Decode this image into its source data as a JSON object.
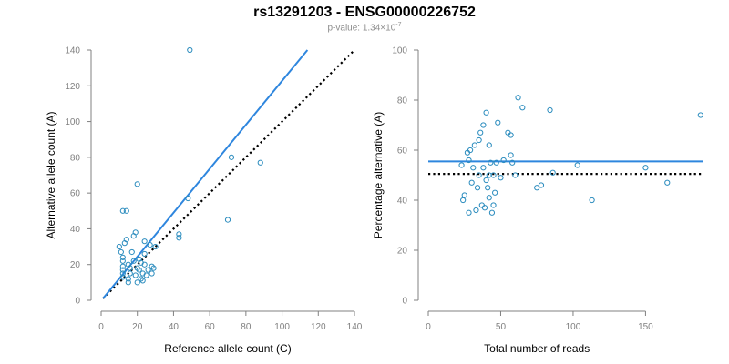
{
  "title": "rs13291203 - ENSG00000226752",
  "subtitle": {
    "prefix": "p-value: 1.34×10",
    "exponent": "-7"
  },
  "colors": {
    "points": "#2b8cbe",
    "fit_line": "#2e86de",
    "reference_line": "#000000",
    "axis": "#808080"
  },
  "chart_data": [
    {
      "type": "scatter",
      "xlabel": "Reference allele count (C)",
      "ylabel": "Alternative allele count (A)",
      "xlim": [
        0,
        140
      ],
      "ylim": [
        0,
        140
      ],
      "xticks": [
        0,
        20,
        40,
        60,
        80,
        100,
        120,
        140
      ],
      "yticks": [
        0,
        20,
        40,
        60,
        80,
        100,
        120,
        140
      ],
      "points": [
        [
          10,
          30
        ],
        [
          11,
          27
        ],
        [
          12,
          24
        ],
        [
          12,
          22
        ],
        [
          12,
          19
        ],
        [
          12,
          17
        ],
        [
          12,
          15
        ],
        [
          12,
          13
        ],
        [
          12,
          50
        ],
        [
          13,
          32
        ],
        [
          14,
          34
        ],
        [
          14,
          50
        ],
        [
          15,
          12
        ],
        [
          15,
          10
        ],
        [
          15,
          20
        ],
        [
          16,
          15
        ],
        [
          16,
          18
        ],
        [
          17,
          27
        ],
        [
          18,
          36
        ],
        [
          18,
          22
        ],
        [
          19,
          38
        ],
        [
          19,
          14
        ],
        [
          20,
          65
        ],
        [
          20,
          10
        ],
        [
          20,
          18
        ],
        [
          21,
          17
        ],
        [
          21,
          23
        ],
        [
          22,
          21
        ],
        [
          22,
          12
        ],
        [
          23,
          11
        ],
        [
          23,
          15
        ],
        [
          24,
          20
        ],
        [
          24,
          26
        ],
        [
          24,
          33
        ],
        [
          25,
          14
        ],
        [
          26,
          17
        ],
        [
          27,
          31
        ],
        [
          28,
          15
        ],
        [
          28,
          19
        ],
        [
          29,
          18
        ],
        [
          30,
          30
        ],
        [
          43,
          35
        ],
        [
          43,
          37
        ],
        [
          48,
          57
        ],
        [
          49,
          140
        ],
        [
          70,
          45
        ],
        [
          72,
          80
        ],
        [
          88,
          77
        ]
      ],
      "fit_line": [
        [
          1,
          1
        ],
        [
          114,
          140
        ]
      ],
      "reference_line": [
        [
          1,
          1
        ],
        [
          140,
          140
        ]
      ]
    },
    {
      "type": "scatter",
      "xlabel": "Total number of reads",
      "ylabel": "Percentage alternative (A)",
      "xlim": [
        0,
        190
      ],
      "ylim": [
        0,
        100
      ],
      "xticks": [
        0,
        50,
        100,
        150
      ],
      "yticks": [
        0,
        20,
        40,
        60,
        80,
        100
      ],
      "points": [
        [
          23,
          54
        ],
        [
          24,
          40
        ],
        [
          25,
          42
        ],
        [
          27,
          59
        ],
        [
          28,
          35
        ],
        [
          28,
          56
        ],
        [
          29,
          60
        ],
        [
          30,
          47
        ],
        [
          31,
          53
        ],
        [
          32,
          62
        ],
        [
          33,
          36
        ],
        [
          34,
          45
        ],
        [
          35,
          64
        ],
        [
          35,
          50
        ],
        [
          36,
          67
        ],
        [
          37,
          38
        ],
        [
          38,
          70
        ],
        [
          38,
          53
        ],
        [
          39,
          37
        ],
        [
          40,
          75
        ],
        [
          40,
          48
        ],
        [
          41,
          45
        ],
        [
          42,
          50
        ],
        [
          42,
          41
        ],
        [
          42,
          62
        ],
        [
          43,
          55
        ],
        [
          44,
          35
        ],
        [
          45,
          38
        ],
        [
          45,
          50
        ],
        [
          46,
          43
        ],
        [
          47,
          55
        ],
        [
          48,
          71
        ],
        [
          50,
          49
        ],
        [
          52,
          56
        ],
        [
          55,
          67
        ],
        [
          57,
          58
        ],
        [
          57,
          66
        ],
        [
          58,
          55
        ],
        [
          60,
          50
        ],
        [
          62,
          81
        ],
        [
          65,
          77
        ],
        [
          75,
          45
        ],
        [
          78,
          46
        ],
        [
          84,
          76
        ],
        [
          86,
          51
        ],
        [
          103,
          54
        ],
        [
          113,
          40
        ],
        [
          150,
          53
        ],
        [
          165,
          47
        ],
        [
          188,
          74
        ]
      ],
      "fit_line": [
        [
          0,
          55.5
        ],
        [
          190,
          55.5
        ]
      ],
      "reference_line": [
        [
          0,
          50.5
        ],
        [
          190,
          50.5
        ]
      ]
    }
  ]
}
